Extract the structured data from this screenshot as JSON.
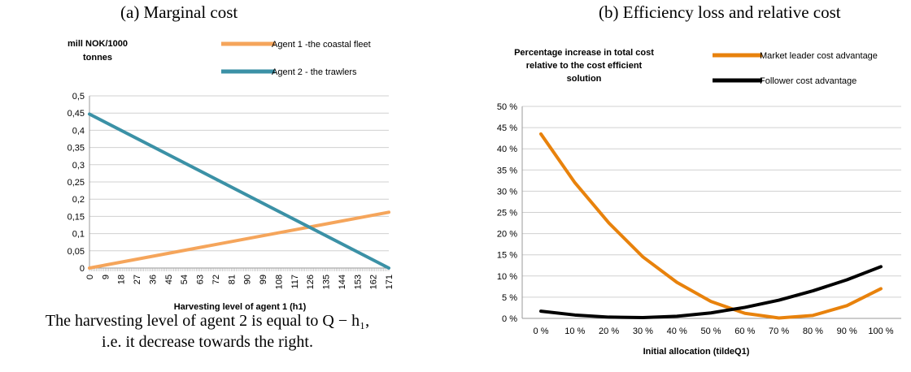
{
  "chart_data": [
    {
      "type": "line",
      "caption": "(a) Marginal cost",
      "ylabel": "mill NOK/1000 tonnes",
      "xlabel": "Harvesting level of agent 1 (h1)",
      "ylim": [
        0,
        0.5
      ],
      "xlim": [
        0,
        171
      ],
      "y_ticks": [
        "0",
        "0,05",
        "0,1",
        "0,15",
        "0,2",
        "0,25",
        "0,3",
        "0,35",
        "0,4",
        "0,45",
        "0,5"
      ],
      "x_ticks": [
        "0",
        "9",
        "18",
        "27",
        "36",
        "45",
        "54",
        "63",
        "72",
        "81",
        "90",
        "99",
        "108",
        "117",
        "126",
        "135",
        "144",
        "153",
        "162",
        "171"
      ],
      "grid": true,
      "legend_placement": "top",
      "series": [
        {
          "name": "Agent 1 -the coastal fleet",
          "color": "#f5a55b",
          "x": [
            0,
            171
          ],
          "y": [
            0,
            0.162
          ]
        },
        {
          "name": "Agent 2 - the trawlers",
          "color": "#3b91a6",
          "x": [
            0,
            171
          ],
          "y": [
            0.447,
            0
          ]
        }
      ],
      "note": [
        "The harvesting level of agent 2 is equal to Q − h₁,",
        "i.e. it decrease towards the right."
      ]
    },
    {
      "type": "line",
      "caption": "(b) Efficiency loss and relative cost",
      "ylabel": "Percentage increase in total cost relative to the cost efficient solution",
      "xlabel": "Initial allocation (tildeQ1)",
      "ylim": [
        0,
        50
      ],
      "xlim": [
        0,
        100
      ],
      "y_ticks": [
        "0 %",
        "5 %",
        "10 %",
        "15 %",
        "20 %",
        "25 %",
        "30 %",
        "35 %",
        "40 %",
        "45 %",
        "50 %"
      ],
      "x_ticks": [
        "0 %",
        "10 %",
        "20 %",
        "30 %",
        "40 %",
        "50 %",
        "60 %",
        "70 %",
        "80 %",
        "90 %",
        "100 %"
      ],
      "grid": true,
      "legend_placement": "top-right",
      "series": [
        {
          "name": "Market leader cost advantage",
          "color": "#e8820c",
          "x": [
            0,
            10,
            20,
            30,
            40,
            50,
            60,
            70,
            80,
            90,
            100
          ],
          "y": [
            43.5,
            32,
            22.5,
            14.5,
            8.5,
            4,
            1.2,
            0.1,
            0.7,
            3,
            7
          ]
        },
        {
          "name": "Follower cost advantage",
          "color": "#000000",
          "x": [
            0,
            10,
            20,
            30,
            40,
            50,
            60,
            70,
            80,
            90,
            100
          ],
          "y": [
            1.7,
            0.8,
            0.3,
            0.2,
            0.5,
            1.3,
            2.6,
            4.3,
            6.5,
            9.1,
            12.2
          ]
        }
      ]
    }
  ]
}
